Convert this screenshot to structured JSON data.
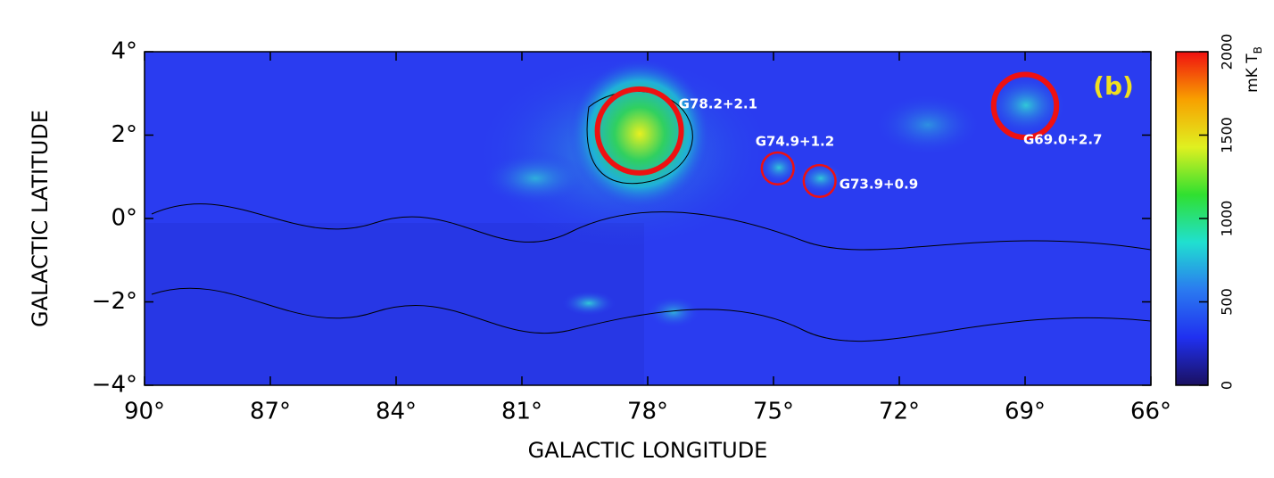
{
  "chart_data": {
    "type": "map",
    "xlabel": "GALACTIC LONGITUDE",
    "ylabel": "GALACTIC LATITUDE",
    "annotation": "(b)",
    "annotation_color": "#f0e020",
    "xlim": [
      90,
      66
    ],
    "ylim": [
      -4,
      4
    ],
    "xticks": [
      {
        "value": 90,
        "label": "90°"
      },
      {
        "value": 87,
        "label": "87°"
      },
      {
        "value": 84,
        "label": "84°"
      },
      {
        "value": 81,
        "label": "81°"
      },
      {
        "value": 78,
        "label": "78°"
      },
      {
        "value": 75,
        "label": "75°"
      },
      {
        "value": 72,
        "label": "72°"
      },
      {
        "value": 69,
        "label": "69°"
      },
      {
        "value": 66,
        "label": "66°"
      }
    ],
    "yticks": [
      {
        "value": 4,
        "label": "4°"
      },
      {
        "value": 2,
        "label": "2°"
      },
      {
        "value": 0,
        "label": "0°"
      },
      {
        "value": -2,
        "label": "−2°"
      },
      {
        "value": -4,
        "label": "−4°"
      }
    ],
    "marker_color": "#ee1111",
    "sources": [
      {
        "name": "G78.2+2.1",
        "l": 78.2,
        "b": 2.1,
        "radius": 1.0
      },
      {
        "name": "G74.9+1.2",
        "l": 74.9,
        "b": 1.2,
        "radius": 0.38
      },
      {
        "name": "G73.9+0.9",
        "l": 73.9,
        "b": 0.9,
        "radius": 0.38
      },
      {
        "name": "G69.0+2.7",
        "l": 69.0,
        "b": 2.7,
        "radius": 0.75
      }
    ],
    "colorbar": {
      "label": "mK T",
      "label_sub": "B",
      "lim": [
        0,
        2000
      ],
      "ticks": [
        0,
        500,
        1000,
        1500,
        2000
      ],
      "colors": [
        "#1a1060",
        "#2030f0",
        "#2a7af0",
        "#20e0d0",
        "#30e030",
        "#e0f020",
        "#f8a000",
        "#f01010"
      ]
    }
  }
}
